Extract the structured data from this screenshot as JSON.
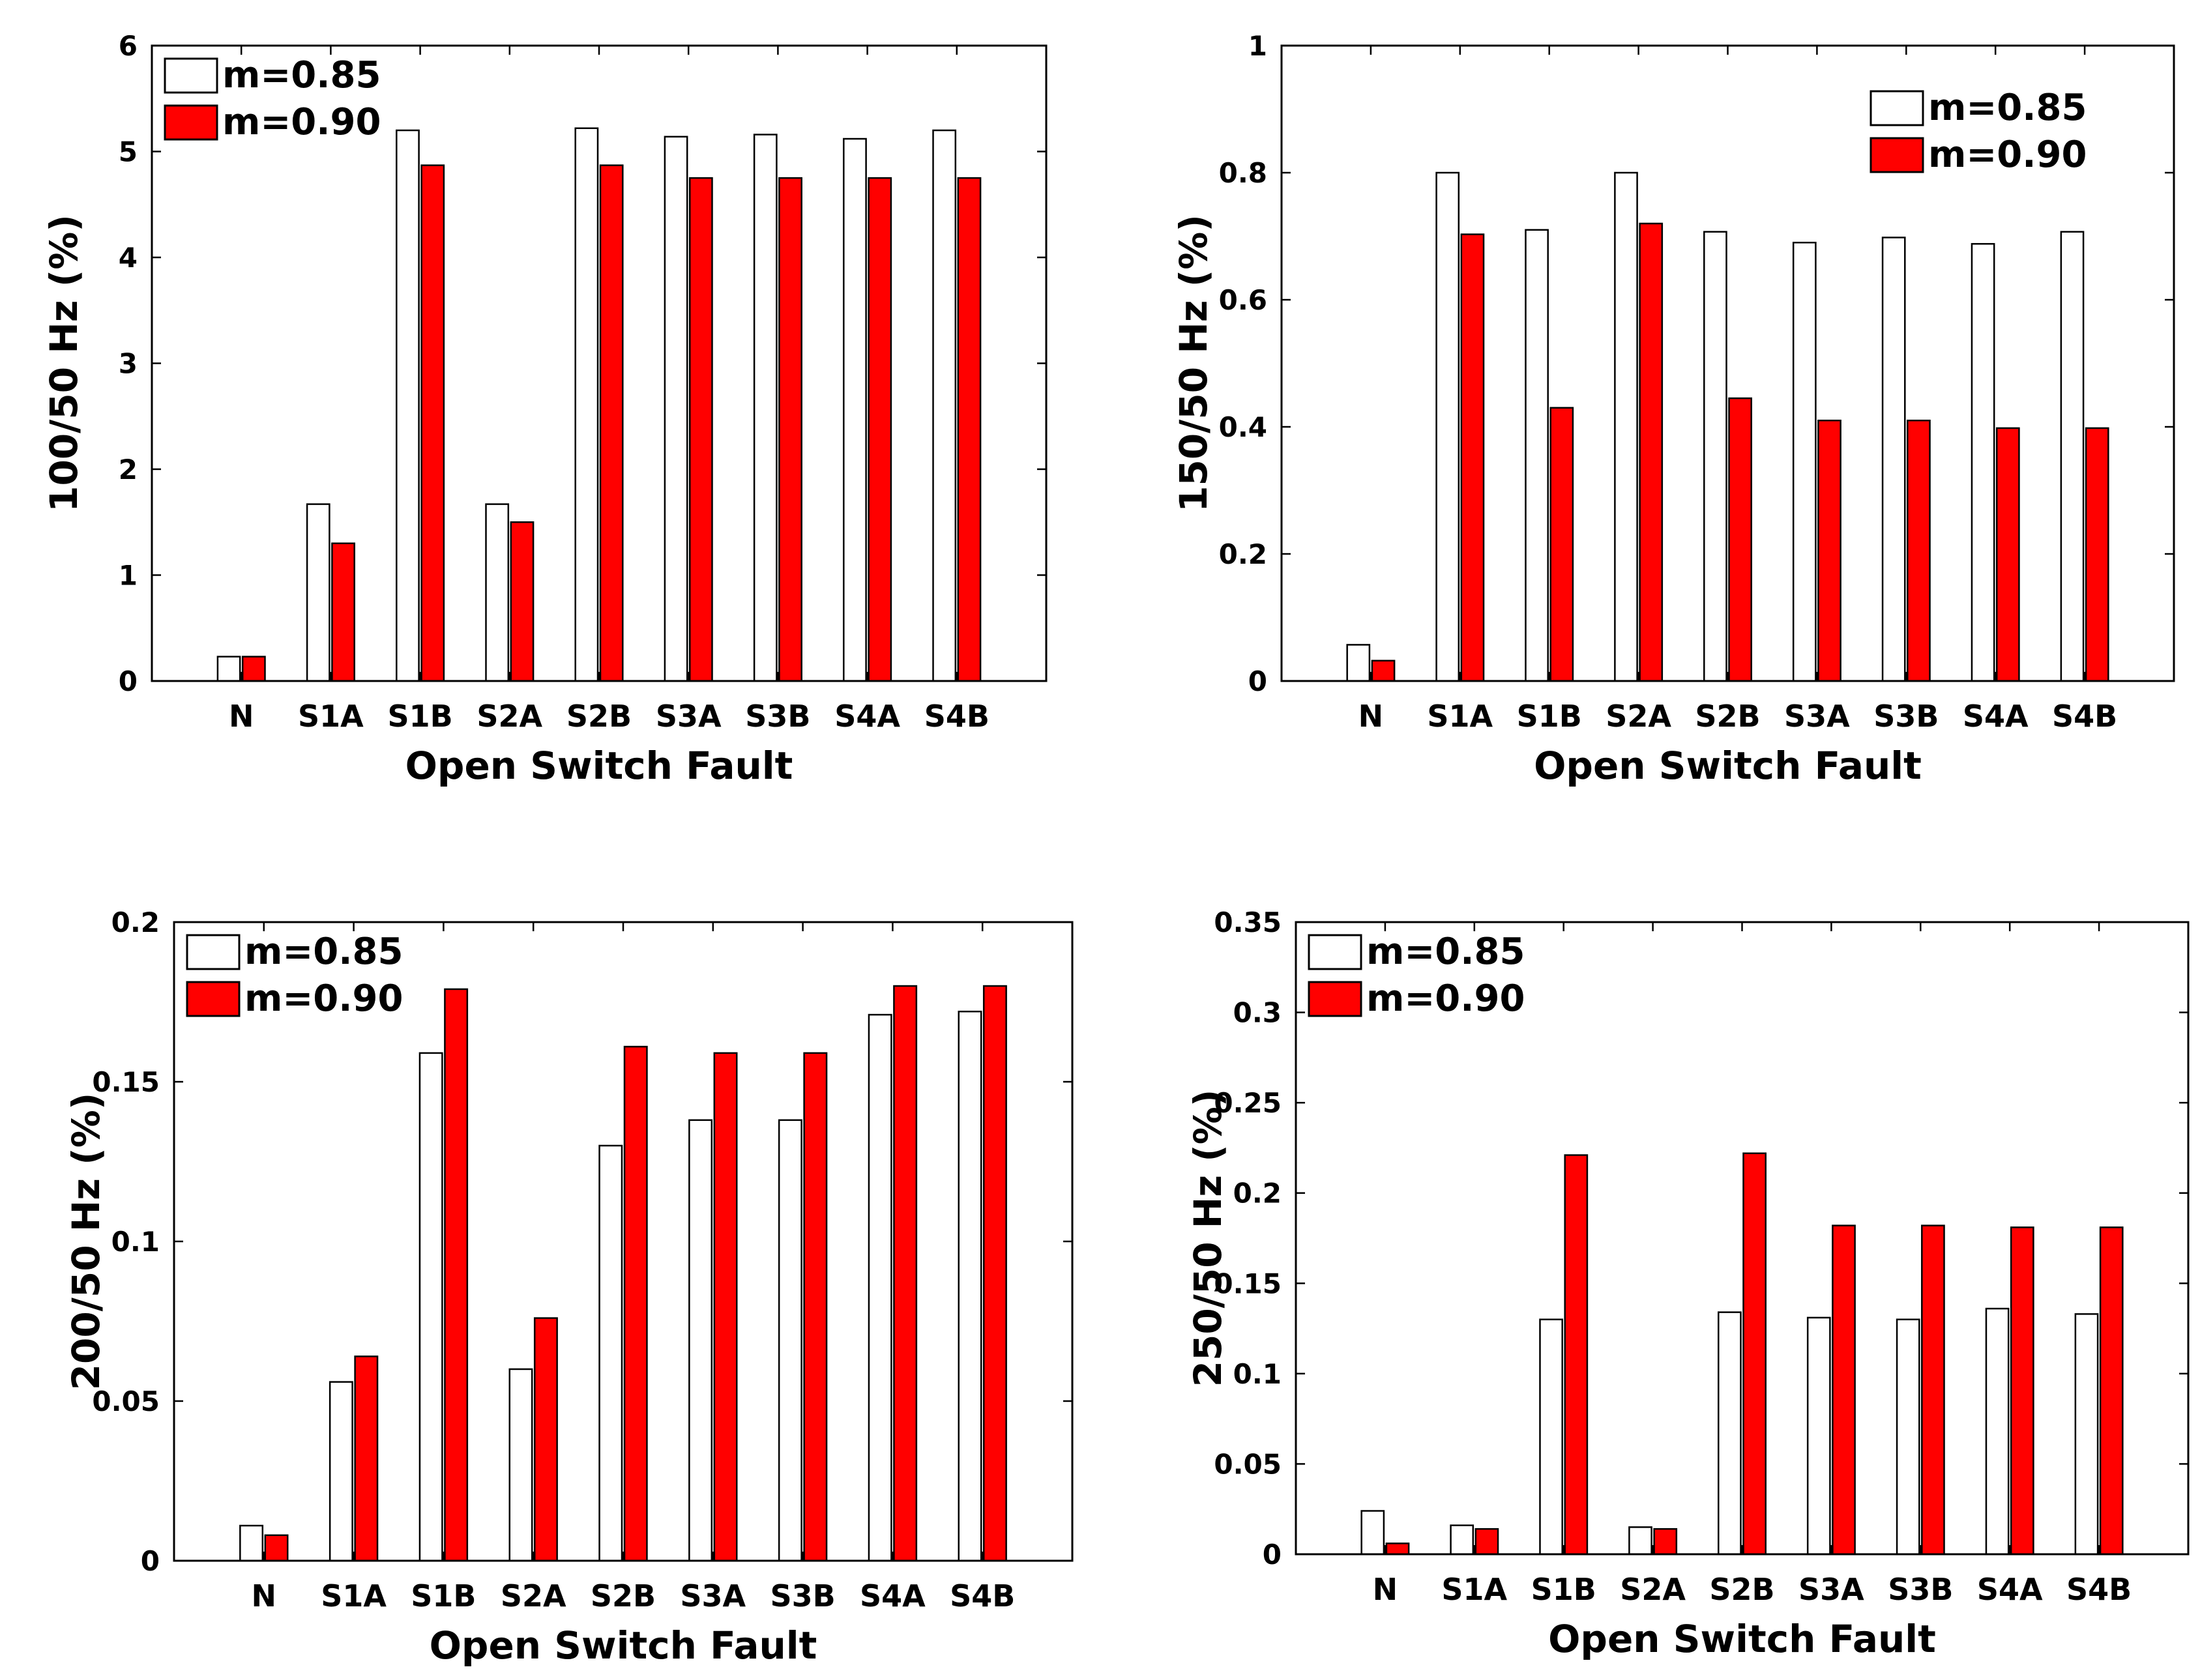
{
  "chart_data": [
    {
      "type": "bar",
      "xlabel": "Open Switch Fault",
      "ylabel": "100/50 Hz (%)",
      "categories": [
        "N",
        "S1A",
        "S1B",
        "S2A",
        "S2B",
        "S3A",
        "S3B",
        "S4A",
        "S4B"
      ],
      "ylim": [
        0,
        6
      ],
      "yticks": [
        "0",
        "1",
        "2",
        "3",
        "4",
        "5",
        "6"
      ],
      "legend_position": "top-left",
      "series": [
        {
          "name": "m=0.85",
          "color": "#ffffff",
          "values": [
            0.23,
            1.67,
            5.2,
            1.67,
            5.22,
            5.14,
            5.16,
            5.12,
            5.2
          ]
        },
        {
          "name": "m=0.90",
          "color": "#ff0000",
          "values": [
            0.23,
            1.3,
            4.87,
            1.5,
            4.87,
            4.75,
            4.75,
            4.75,
            4.75
          ]
        }
      ]
    },
    {
      "type": "bar",
      "xlabel": "Open Switch Fault",
      "ylabel": "150/50 Hz (%)",
      "categories": [
        "N",
        "S1A",
        "S1B",
        "S2A",
        "S2B",
        "S3A",
        "S3B",
        "S4A",
        "S4B"
      ],
      "ylim": [
        0,
        1
      ],
      "yticks": [
        "0",
        "0.2",
        "0.4",
        "0.6",
        "0.8",
        "1"
      ],
      "legend_position": "top-right",
      "series": [
        {
          "name": "m=0.85",
          "color": "#ffffff",
          "values": [
            0.057,
            0.8,
            0.71,
            0.8,
            0.707,
            0.69,
            0.698,
            0.688,
            0.707
          ]
        },
        {
          "name": "m=0.90",
          "color": "#ff0000",
          "values": [
            0.032,
            0.703,
            0.43,
            0.72,
            0.445,
            0.41,
            0.41,
            0.398,
            0.398
          ]
        }
      ]
    },
    {
      "type": "bar",
      "xlabel": "Open Switch Fault",
      "ylabel": "200/50 Hz (%)",
      "categories": [
        "N",
        "S1A",
        "S1B",
        "S2A",
        "S2B",
        "S3A",
        "S3B",
        "S4A",
        "S4B"
      ],
      "ylim": [
        0,
        0.2
      ],
      "yticks": [
        "0",
        "0.05",
        "0.1",
        "0.15",
        "0.2"
      ],
      "legend_position": "top-left",
      "series": [
        {
          "name": "m=0.85",
          "color": "#ffffff",
          "values": [
            0.011,
            0.056,
            0.159,
            0.06,
            0.13,
            0.138,
            0.138,
            0.171,
            0.172
          ]
        },
        {
          "name": "m=0.90",
          "color": "#ff0000",
          "values": [
            0.008,
            0.064,
            0.179,
            0.076,
            0.161,
            0.159,
            0.159,
            0.18,
            0.18
          ]
        }
      ]
    },
    {
      "type": "bar",
      "xlabel": "Open Switch Fault",
      "ylabel": "250/50 Hz (%)",
      "categories": [
        "N",
        "S1A",
        "S1B",
        "S2A",
        "S2B",
        "S3A",
        "S3B",
        "S4A",
        "S4B"
      ],
      "ylim": [
        0,
        0.35
      ],
      "yticks": [
        "0",
        "0.05",
        "0.1",
        "0.15",
        "0.2",
        "0.25",
        "0.3",
        "0.35"
      ],
      "legend_position": "top-left",
      "series": [
        {
          "name": "m=0.85",
          "color": "#ffffff",
          "values": [
            0.024,
            0.016,
            0.13,
            0.015,
            0.134,
            0.131,
            0.13,
            0.136,
            0.133
          ]
        },
        {
          "name": "m=0.90",
          "color": "#ff0000",
          "values": [
            0.006,
            0.014,
            0.221,
            0.014,
            0.222,
            0.182,
            0.182,
            0.181,
            0.181
          ]
        }
      ]
    }
  ]
}
